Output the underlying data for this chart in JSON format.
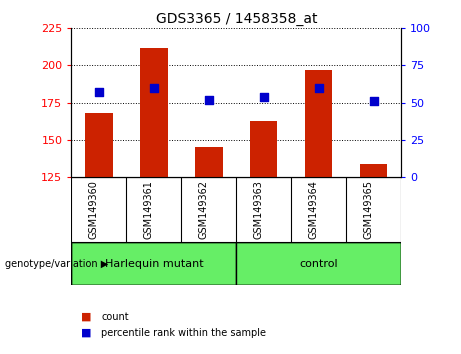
{
  "title": "GDS3365 / 1458358_at",
  "categories": [
    "GSM149360",
    "GSM149361",
    "GSM149362",
    "GSM149363",
    "GSM149364",
    "GSM149365"
  ],
  "bar_values": [
    168,
    212,
    145,
    163,
    197,
    134
  ],
  "bar_base": 125,
  "percentile_values": [
    57,
    60,
    52,
    54,
    60,
    51
  ],
  "ylim_left": [
    125,
    225
  ],
  "ylim_right": [
    0,
    100
  ],
  "yticks_left": [
    125,
    150,
    175,
    200,
    225
  ],
  "yticks_right": [
    0,
    25,
    50,
    75,
    100
  ],
  "bar_color": "#cc2200",
  "dot_color": "#0000cc",
  "dot_size": 40,
  "group_labels": [
    "Harlequin mutant",
    "control"
  ],
  "group_ranges": [
    [
      0,
      3
    ],
    [
      3,
      6
    ]
  ],
  "xlabel_area_color": "#c8c8c8",
  "green_color": "#66ee66",
  "legend_count_color": "#cc2200",
  "legend_pct_color": "#0000cc",
  "bottom_label": "genotype/variation"
}
